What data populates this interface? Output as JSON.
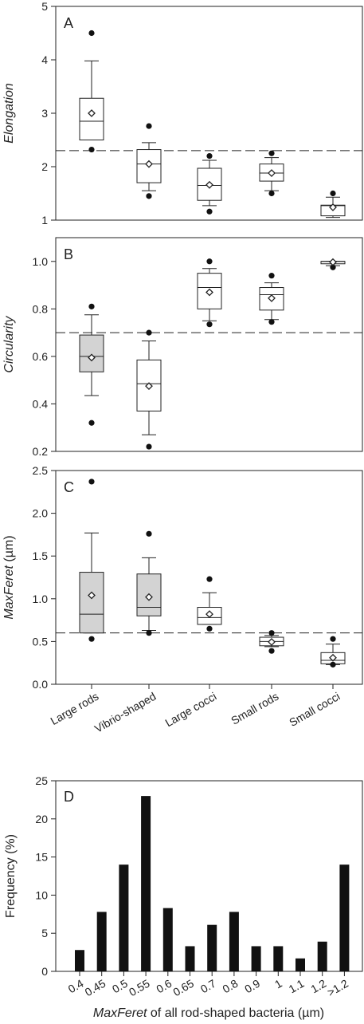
{
  "chart_data": [
    {
      "panel": "A",
      "type": "box",
      "ylabel": "Elongation",
      "ylim": [
        1,
        5
      ],
      "yticks": [
        1,
        2,
        3,
        4,
        5
      ],
      "ref_line": 2.3,
      "categories": [
        "Large rods",
        "Vibrio-shaped",
        "Large cocci",
        "Small rods",
        "Small cocci"
      ],
      "boxes": [
        {
          "min": 2.5,
          "q1": 2.5,
          "median": 2.85,
          "q3": 3.28,
          "max": 3.98,
          "mean": 3.0,
          "outliers": [
            4.5,
            2.32
          ],
          "fill": "#ffffff"
        },
        {
          "min": 1.55,
          "q1": 1.7,
          "median": 2.05,
          "q3": 2.32,
          "max": 2.45,
          "mean": 2.05,
          "outliers": [
            2.76,
            1.45
          ],
          "fill": "#ffffff"
        },
        {
          "min": 1.27,
          "q1": 1.37,
          "median": 1.65,
          "q3": 1.97,
          "max": 2.12,
          "mean": 1.66,
          "outliers": [
            2.2,
            1.16
          ],
          "fill": "#ffffff"
        },
        {
          "min": 1.55,
          "q1": 1.73,
          "median": 1.88,
          "q3": 2.05,
          "max": 2.17,
          "mean": 1.88,
          "outliers": [
            2.25,
            1.5
          ],
          "fill": "#ffffff"
        },
        {
          "min": 1.05,
          "q1": 1.08,
          "median": 1.27,
          "q3": 1.28,
          "max": 1.43,
          "mean": 1.24,
          "outliers": [
            1.5
          ],
          "fill": "#ffffff"
        }
      ]
    },
    {
      "panel": "B",
      "type": "box",
      "ylabel": "Circularity",
      "ylim": [
        0.2,
        1.1
      ],
      "yticks": [
        0.2,
        0.4,
        0.6,
        0.8,
        1.0
      ],
      "yticklabels": [
        "0.2",
        "0.4",
        "0.6",
        "0.8",
        "1.0"
      ],
      "ref_line": 0.7,
      "categories": [
        "Large rods",
        "Vibrio-shaped",
        "Large cocci",
        "Small rods",
        "Small cocci"
      ],
      "boxes": [
        {
          "min": 0.435,
          "q1": 0.535,
          "median": 0.6,
          "q3": 0.69,
          "max": 0.775,
          "mean": 0.595,
          "outliers": [
            0.81,
            0.32
          ],
          "fill": "#d3d3d3"
        },
        {
          "min": 0.27,
          "q1": 0.37,
          "median": 0.485,
          "q3": 0.585,
          "max": 0.665,
          "mean": 0.475,
          "outliers": [
            0.7,
            0.22
          ],
          "fill": "#ffffff"
        },
        {
          "min": 0.75,
          "q1": 0.8,
          "median": 0.89,
          "q3": 0.95,
          "max": 0.97,
          "mean": 0.87,
          "outliers": [
            1.0,
            0.735
          ],
          "fill": "#ffffff"
        },
        {
          "min": 0.755,
          "q1": 0.795,
          "median": 0.86,
          "q3": 0.89,
          "max": 0.91,
          "mean": 0.845,
          "outliers": [
            0.94,
            0.745
          ],
          "fill": "#ffffff"
        },
        {
          "min": 0.982,
          "q1": 0.99,
          "median": 1.0,
          "q3": 1.0,
          "max": 1.0,
          "mean": 0.997,
          "outliers": [
            0.975
          ],
          "fill": "#ffffff"
        }
      ]
    },
    {
      "panel": "C",
      "type": "box",
      "ylabel": "MaxFeret",
      "ylabel_unit": "(µm)",
      "ylim": [
        0,
        2.5
      ],
      "yticks": [
        0,
        0.5,
        1.0,
        1.5,
        2.0,
        2.5
      ],
      "yticklabels": [
        "0.0",
        "0.5",
        "1.0",
        "1.5",
        "2.0",
        "2.5"
      ],
      "ref_line": 0.6,
      "categories": [
        "Large rods",
        "Vibrio-shaped",
        "Large cocci",
        "Small rods",
        "Small cocci"
      ],
      "boxes": [
        {
          "min": 0.6,
          "q1": 0.6,
          "median": 0.82,
          "q3": 1.31,
          "max": 1.77,
          "mean": 1.04,
          "outliers": [
            2.37,
            0.53
          ],
          "fill": "#d3d3d3"
        },
        {
          "min": 0.63,
          "q1": 0.8,
          "median": 0.9,
          "q3": 1.29,
          "max": 1.48,
          "mean": 1.02,
          "outliers": [
            1.76,
            0.6
          ],
          "fill": "#d3d3d3"
        },
        {
          "min": 0.7,
          "q1": 0.7,
          "median": 0.78,
          "q3": 0.9,
          "max": 1.07,
          "mean": 0.82,
          "outliers": [
            1.23,
            0.65
          ],
          "fill": "#ffffff"
        },
        {
          "min": 0.44,
          "q1": 0.45,
          "median": 0.5,
          "q3": 0.55,
          "max": 0.57,
          "mean": 0.495,
          "outliers": [
            0.6,
            0.39
          ],
          "fill": "#ffffff"
        },
        {
          "min": 0.23,
          "q1": 0.24,
          "median": 0.28,
          "q3": 0.37,
          "max": 0.47,
          "mean": 0.31,
          "outliers": [
            0.53,
            0.23
          ],
          "fill": "#ffffff"
        }
      ]
    },
    {
      "panel": "D",
      "type": "bar",
      "ylabel": "Frequency (%)",
      "xlabel_italic": "MaxFeret",
      "xlabel_rest": " of all rod-shaped bacteria (µm)",
      "ylim": [
        0,
        25
      ],
      "yticks": [
        0,
        5,
        10,
        15,
        20,
        25
      ],
      "categories": [
        "0.4",
        "0.45",
        "0.5",
        "0.55",
        "0.6",
        "0.65",
        "0.7",
        "0.8",
        "0.9",
        "1",
        "1.1",
        "1.2",
        ">1.2"
      ],
      "values": [
        2.8,
        7.8,
        14.0,
        23.0,
        8.3,
        3.3,
        6.1,
        7.8,
        3.3,
        3.3,
        1.7,
        3.9,
        14.0
      ]
    }
  ]
}
